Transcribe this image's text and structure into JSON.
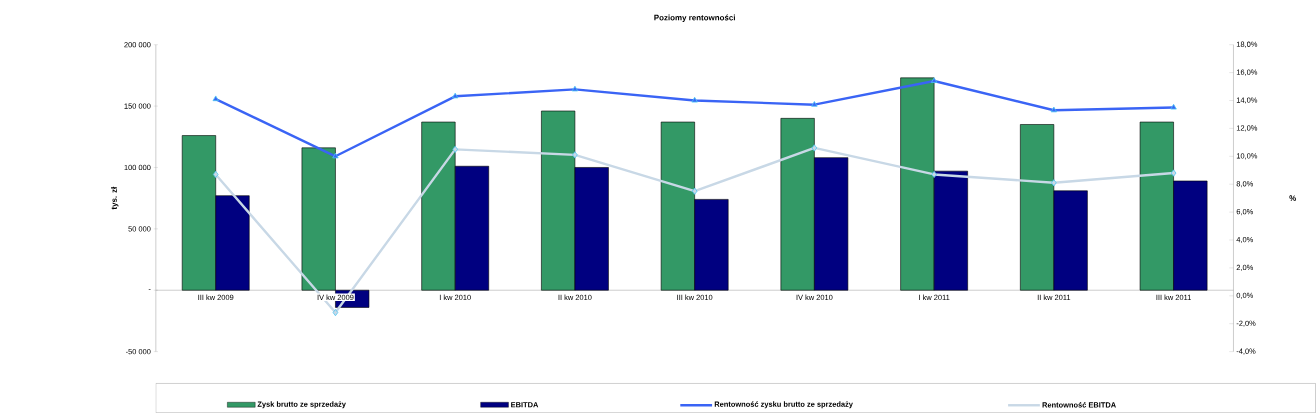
{
  "chart_data": {
    "type": "bar",
    "title": "Poziomy rentowności",
    "categories": [
      "III kw 2009",
      "IV kw 2009",
      "I kw 2010",
      "II kw 2010",
      "III kw 2010",
      "IV kw 2010",
      "I kw 2011",
      "II kw 2011",
      "III kw 2011"
    ],
    "series": [
      {
        "name": "Zysk brutto ze sprzedaży",
        "color": "#339966",
        "values": [
          126000,
          116000,
          137000,
          146000,
          137000,
          140000,
          173000,
          135000,
          137000
        ]
      },
      {
        "name": "EBITDA",
        "color": "#000080",
        "values": [
          77000,
          -14000,
          101000,
          100000,
          74000,
          108000,
          97000,
          81000,
          89000
        ]
      },
      {
        "name": "Rentowność zysku brutto ze sprzedaży",
        "type": "line",
        "axis": "y2",
        "marker": "triangle",
        "color": "#3a64f5",
        "values": [
          14.1,
          10.0,
          14.3,
          14.8,
          14.0,
          13.7,
          15.4,
          13.3,
          13.5
        ]
      },
      {
        "name": "Rentowność EBITDA",
        "type": "line",
        "axis": "y2",
        "marker": "diamond",
        "color": "#c8d8e6",
        "values": [
          8.7,
          -1.2,
          10.5,
          10.1,
          7.5,
          10.6,
          8.7,
          8.1,
          8.8
        ]
      }
    ],
    "ylabel": "tys. zł",
    "y2label": "%",
    "ylim": [
      -50000,
      200000
    ],
    "yticks": [
      {
        "value": -50000,
        "label": "-50 000"
      },
      {
        "value": 0,
        "label": "-"
      },
      {
        "value": 50000,
        "label": "50 000"
      },
      {
        "value": 100000,
        "label": "100 000"
      },
      {
        "value": 150000,
        "label": "150 000"
      },
      {
        "value": 200000,
        "label": "200 000"
      }
    ],
    "y2lim": [
      -4,
      18
    ],
    "y2ticks": [
      {
        "value": -4,
        "label": "-4,0%"
      },
      {
        "value": -2,
        "label": "-2,0%"
      },
      {
        "value": 0,
        "label": "0,0%"
      },
      {
        "value": 2,
        "label": "2,0%"
      },
      {
        "value": 4,
        "label": "4,0%"
      },
      {
        "value": 6,
        "label": "6,0%"
      },
      {
        "value": 8,
        "label": "8,0%"
      },
      {
        "value": 10,
        "label": "10,0%"
      },
      {
        "value": 12,
        "label": "12,0%"
      },
      {
        "value": 14,
        "label": "14,0%"
      },
      {
        "value": 16,
        "label": "16,0%"
      },
      {
        "value": 18,
        "label": "18,0%"
      }
    ],
    "legend": "bottom"
  }
}
